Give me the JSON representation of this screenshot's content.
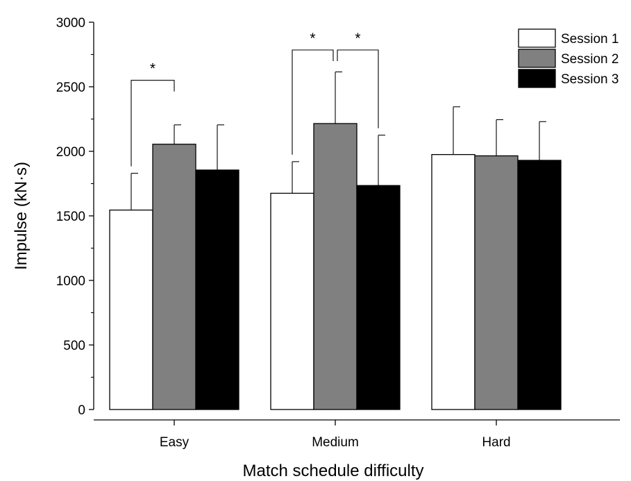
{
  "chart_data": {
    "type": "bar",
    "xlabel": "Match schedule difficulty",
    "ylabel": "Impulse (kN·s)",
    "ylim": [
      0,
      3000
    ],
    "yticks": [
      0,
      500,
      1000,
      1500,
      2000,
      2500,
      3000
    ],
    "categories": [
      "Easy",
      "Medium",
      "Hard"
    ],
    "legend_position": "top-right",
    "series": [
      {
        "name": "Session 1",
        "color": "#ffffff",
        "values": [
          1545,
          1675,
          1975
        ],
        "errors": [
          285,
          245,
          370
        ]
      },
      {
        "name": "Session 2",
        "color": "#808080",
        "values": [
          2055,
          2215,
          1965
        ],
        "errors": [
          150,
          400,
          280
        ]
      },
      {
        "name": "Session 3",
        "color": "#000000",
        "values": [
          1855,
          1735,
          1930
        ],
        "errors": [
          350,
          390,
          300
        ]
      }
    ],
    "significance": [
      {
        "category": 0,
        "from_series": 0,
        "to_series": 1,
        "label": "*"
      },
      {
        "category": 1,
        "from_series": 0,
        "to_series": 1,
        "label": "*"
      },
      {
        "category": 1,
        "from_series": 1,
        "to_series": 2,
        "label": "*"
      }
    ]
  }
}
